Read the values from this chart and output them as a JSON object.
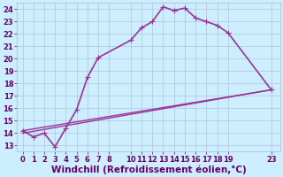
{
  "xlabel": "Windchill (Refroidissement éolien,°C)",
  "bg_color": "#cceeff",
  "grid_color": "#aabbcc",
  "line_color": "#993399",
  "xlim": [
    -0.5,
    23.8
  ],
  "ylim": [
    12.5,
    24.5
  ],
  "xticks": [
    0,
    1,
    2,
    3,
    4,
    5,
    6,
    7,
    8,
    10,
    11,
    12,
    13,
    14,
    15,
    16,
    17,
    18,
    19,
    23
  ],
  "yticks": [
    13,
    14,
    15,
    16,
    17,
    18,
    19,
    20,
    21,
    22,
    23,
    24
  ],
  "lines": [
    {
      "x": [
        0,
        1,
        2,
        3,
        4,
        5,
        6,
        7,
        10,
        11,
        12,
        13,
        14,
        15,
        16,
        17,
        18,
        19,
        23
      ],
      "y": [
        14.2,
        13.7,
        14.0,
        12.9,
        14.4,
        15.9,
        18.5,
        20.1,
        21.5,
        22.5,
        23.0,
        24.2,
        23.9,
        24.1,
        23.3,
        23.0,
        22.7,
        22.1,
        17.5
      ],
      "marker": "+",
      "markersize": 4,
      "lw": 1.2
    },
    {
      "x": [
        0,
        23
      ],
      "y": [
        14.0,
        17.5
      ],
      "marker": null,
      "markersize": 0,
      "lw": 1.0
    },
    {
      "x": [
        0,
        23
      ],
      "y": [
        14.2,
        17.5
      ],
      "marker": null,
      "markersize": 0,
      "lw": 1.0
    }
  ],
  "font_color": "#660066",
  "tick_fontsize": 6,
  "xlabel_fontsize": 7.5
}
